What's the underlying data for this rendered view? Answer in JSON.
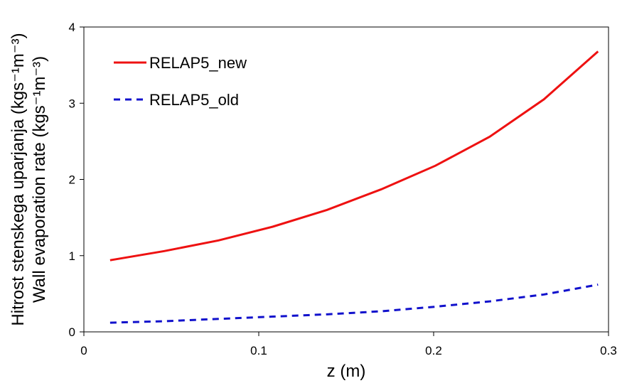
{
  "chart_data": {
    "type": "line",
    "xlabel": "z (m)",
    "ylabel": [
      "Hitrost stenskega uparjanja  (kgs⁻¹m⁻³)",
      "Wall evaporation rate (kgs⁻¹m⁻³)"
    ],
    "x": [
      0.015,
      0.046,
      0.077,
      0.108,
      0.139,
      0.17,
      0.201,
      0.232,
      0.263,
      0.294
    ],
    "series": [
      {
        "name": "RELAP5_new",
        "color": "#ee1111",
        "dash": false,
        "values": [
          0.94,
          1.06,
          1.2,
          1.38,
          1.6,
          1.87,
          2.18,
          2.56,
          3.05,
          3.68
        ]
      },
      {
        "name": "RELAP5_old",
        "color": "#1111cc",
        "dash": true,
        "values": [
          0.12,
          0.14,
          0.17,
          0.2,
          0.23,
          0.27,
          0.33,
          0.4,
          0.49,
          0.62
        ]
      }
    ],
    "xlim": [
      0,
      0.3
    ],
    "xticks": [
      0,
      0.1,
      0.2,
      0.3
    ],
    "ylim": [
      0,
      4
    ],
    "yticks": [
      0,
      1,
      2,
      3,
      4
    ],
    "legend": "upper left",
    "grid": false
  }
}
